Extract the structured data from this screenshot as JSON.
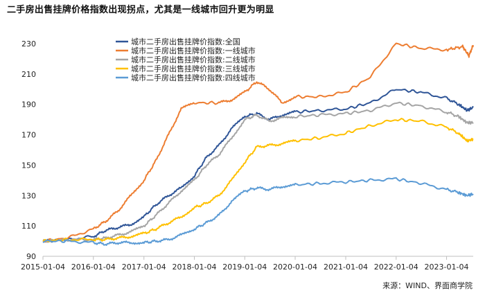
{
  "title": "二手房出售挂牌价格指数出现拐点，尤其是一线城市回升更为明显",
  "source": "来源：WIND、界面商学院",
  "chart_data": {
    "type": "line",
    "x_ticks": [
      "2015-01-04",
      "2016-01-04",
      "2017-01-04",
      "2018-01-04",
      "2019-01-04",
      "2020-01-04",
      "2021-01-04",
      "2022-01-04",
      "2023-01-04"
    ],
    "y_ticks": [
      90,
      110,
      130,
      150,
      170,
      190,
      210,
      230
    ],
    "xlim": [
      "2015-01-04",
      "2023-07-16"
    ],
    "ylim": [
      90,
      235
    ],
    "grid": false,
    "legend": "top-center",
    "series": [
      {
        "name": "城市二手房出售挂牌价指数:全国",
        "color": "#2f5597",
        "points": [
          [
            "2015-01-04",
            100
          ],
          [
            "2015-07-01",
            101
          ],
          [
            "2016-01-04",
            103
          ],
          [
            "2016-04-01",
            107
          ],
          [
            "2016-07-01",
            109
          ],
          [
            "2016-10-01",
            111
          ],
          [
            "2017-01-04",
            116
          ],
          [
            "2017-04-01",
            124
          ],
          [
            "2017-07-01",
            130
          ],
          [
            "2017-10-01",
            135
          ],
          [
            "2018-01-04",
            143
          ],
          [
            "2018-04-01",
            155
          ],
          [
            "2018-07-01",
            163
          ],
          [
            "2018-10-01",
            174
          ],
          [
            "2019-01-04",
            182
          ],
          [
            "2019-04-01",
            184
          ],
          [
            "2019-07-01",
            180
          ],
          [
            "2019-10-01",
            183
          ],
          [
            "2020-01-04",
            185
          ],
          [
            "2020-07-01",
            186
          ],
          [
            "2021-01-04",
            187
          ],
          [
            "2021-07-01",
            191
          ],
          [
            "2022-01-04",
            200
          ],
          [
            "2022-07-01",
            198
          ],
          [
            "2023-01-04",
            194
          ],
          [
            "2023-04-01",
            190
          ],
          [
            "2023-06-01",
            186
          ],
          [
            "2023-07-16",
            188
          ]
        ]
      },
      {
        "name": "城市二手房出售挂牌价指数:一线城市",
        "color": "#ed7d31",
        "points": [
          [
            "2015-01-04",
            100
          ],
          [
            "2015-07-01",
            102
          ],
          [
            "2016-01-04",
            108
          ],
          [
            "2016-04-01",
            113
          ],
          [
            "2016-07-01",
            120
          ],
          [
            "2016-10-01",
            130
          ],
          [
            "2017-01-04",
            140
          ],
          [
            "2017-04-01",
            153
          ],
          [
            "2017-07-01",
            170
          ],
          [
            "2017-10-01",
            187
          ],
          [
            "2018-01-04",
            191
          ],
          [
            "2018-07-01",
            191
          ],
          [
            "2018-10-01",
            193
          ],
          [
            "2019-01-04",
            198
          ],
          [
            "2019-04-01",
            205
          ],
          [
            "2019-07-01",
            200
          ],
          [
            "2019-10-01",
            191
          ],
          [
            "2020-01-04",
            195
          ],
          [
            "2020-07-01",
            195
          ],
          [
            "2021-01-04",
            198
          ],
          [
            "2021-07-01",
            208
          ],
          [
            "2022-01-04",
            230
          ],
          [
            "2022-07-01",
            227
          ],
          [
            "2023-01-04",
            226
          ],
          [
            "2023-05-01",
            228
          ],
          [
            "2023-06-15",
            222
          ],
          [
            "2023-07-16",
            229
          ]
        ]
      },
      {
        "name": "城市二手房出售挂牌价指数:二线城市",
        "color": "#a5a5a5",
        "points": [
          [
            "2015-01-04",
            100
          ],
          [
            "2015-07-01",
            101
          ],
          [
            "2016-01-04",
            101
          ],
          [
            "2016-04-01",
            102
          ],
          [
            "2016-07-01",
            104
          ],
          [
            "2016-10-01",
            106
          ],
          [
            "2017-01-04",
            110
          ],
          [
            "2017-04-01",
            117
          ],
          [
            "2017-07-01",
            125
          ],
          [
            "2017-10-01",
            133
          ],
          [
            "2018-01-04",
            140
          ],
          [
            "2018-04-01",
            150
          ],
          [
            "2018-07-01",
            157
          ],
          [
            "2018-10-01",
            168
          ],
          [
            "2019-01-04",
            180
          ],
          [
            "2019-04-01",
            183
          ],
          [
            "2019-07-01",
            179
          ],
          [
            "2019-10-01",
            181
          ],
          [
            "2020-01-04",
            182
          ],
          [
            "2020-07-01",
            183
          ],
          [
            "2021-01-04",
            184
          ],
          [
            "2021-07-01",
            186
          ],
          [
            "2022-01-04",
            191
          ],
          [
            "2022-07-01",
            189
          ],
          [
            "2023-01-04",
            185
          ],
          [
            "2023-04-01",
            182
          ],
          [
            "2023-06-01",
            178
          ],
          [
            "2023-07-16",
            178
          ]
        ]
      },
      {
        "name": "城市二手房出售挂牌价指数:三线城市",
        "color": "#ffc000",
        "points": [
          [
            "2015-01-04",
            100
          ],
          [
            "2015-07-01",
            101
          ],
          [
            "2016-01-04",
            101
          ],
          [
            "2016-04-01",
            101
          ],
          [
            "2016-07-01",
            102
          ],
          [
            "2016-10-01",
            103
          ],
          [
            "2017-01-04",
            105
          ],
          [
            "2017-04-01",
            108
          ],
          [
            "2017-07-01",
            112
          ],
          [
            "2017-10-01",
            116
          ],
          [
            "2018-01-04",
            122
          ],
          [
            "2018-04-01",
            125
          ],
          [
            "2018-07-01",
            130
          ],
          [
            "2018-10-01",
            140
          ],
          [
            "2019-01-04",
            152
          ],
          [
            "2019-04-01",
            162
          ],
          [
            "2019-07-01",
            163
          ],
          [
            "2019-10-01",
            164
          ],
          [
            "2020-01-04",
            166
          ],
          [
            "2020-07-01",
            168
          ],
          [
            "2021-01-04",
            171
          ],
          [
            "2021-07-01",
            176
          ],
          [
            "2022-01-04",
            180
          ],
          [
            "2022-07-01",
            179
          ],
          [
            "2023-01-04",
            175
          ],
          [
            "2023-04-01",
            171
          ],
          [
            "2023-06-01",
            166
          ],
          [
            "2023-07-16",
            167
          ]
        ]
      },
      {
        "name": "城市二手房出售挂牌价指数:四线城市",
        "color": "#5b9bd5",
        "points": [
          [
            "2015-01-04",
            100
          ],
          [
            "2015-07-01",
            100
          ],
          [
            "2016-01-04",
            99
          ],
          [
            "2016-04-01",
            98
          ],
          [
            "2016-07-01",
            99
          ],
          [
            "2016-10-01",
            99
          ],
          [
            "2017-01-04",
            99
          ],
          [
            "2017-04-01",
            100
          ],
          [
            "2017-07-01",
            101
          ],
          [
            "2017-10-01",
            104
          ],
          [
            "2018-01-04",
            108
          ],
          [
            "2018-04-01",
            112
          ],
          [
            "2018-07-01",
            117
          ],
          [
            "2018-10-01",
            126
          ],
          [
            "2019-01-04",
            133
          ],
          [
            "2019-04-01",
            135
          ],
          [
            "2019-07-01",
            134
          ],
          [
            "2019-10-01",
            136
          ],
          [
            "2020-01-04",
            137
          ],
          [
            "2020-07-01",
            138
          ],
          [
            "2021-01-04",
            139
          ],
          [
            "2021-07-01",
            140
          ],
          [
            "2022-01-04",
            141
          ],
          [
            "2022-07-01",
            138
          ],
          [
            "2023-01-04",
            134
          ],
          [
            "2023-04-01",
            132
          ],
          [
            "2023-06-01",
            130
          ],
          [
            "2023-07-16",
            131
          ]
        ]
      }
    ]
  }
}
